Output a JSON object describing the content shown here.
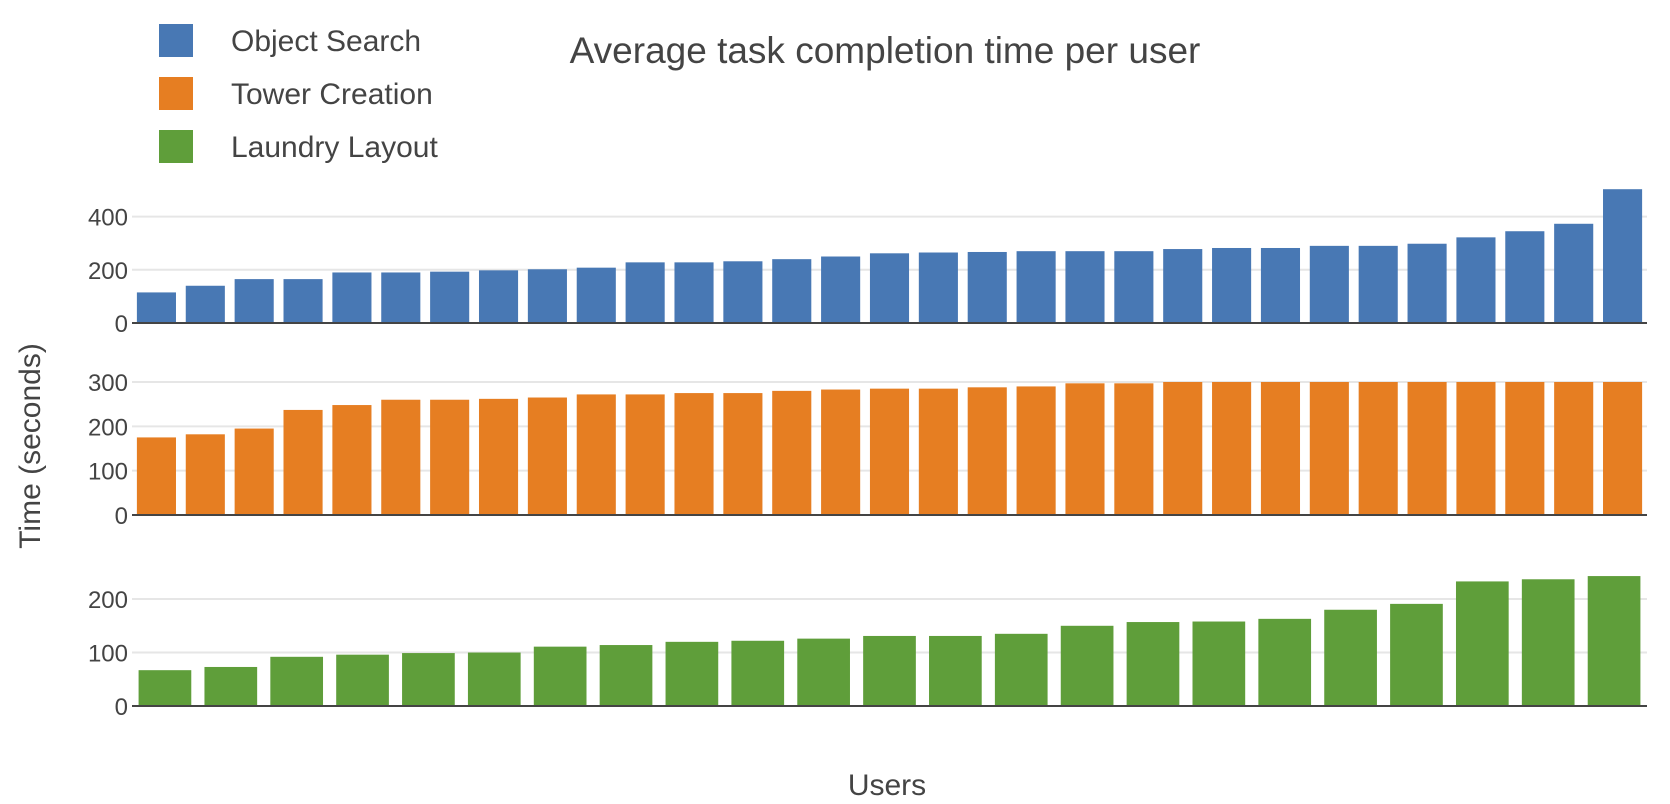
{
  "chart_data": {
    "type": "bar",
    "title": "Average task completion time per user",
    "xlabel": "Users",
    "ylabel": "Time (seconds)",
    "legend_position": "top-left",
    "grid": true,
    "series": [
      {
        "name": "Object Search",
        "color": "#4878b4",
        "yticks": [
          0,
          200,
          400
        ],
        "ylim": [
          0,
          500
        ],
        "values": [
          115,
          140,
          165,
          165,
          190,
          190,
          193,
          198,
          202,
          208,
          228,
          228,
          232,
          240,
          250,
          262,
          265,
          267,
          270,
          270,
          270,
          278,
          282,
          282,
          290,
          290,
          298,
          322,
          345,
          373,
          503
        ]
      },
      {
        "name": "Tower Creation",
        "color": "#e67e22",
        "yticks": [
          0,
          100,
          200,
          300
        ],
        "ylim": [
          0,
          300
        ],
        "values": [
          175,
          182,
          195,
          237,
          248,
          260,
          260,
          262,
          265,
          272,
          272,
          275,
          275,
          280,
          283,
          285,
          285,
          288,
          290,
          297,
          297,
          300,
          300,
          300,
          300,
          300,
          300,
          300,
          300,
          300,
          300
        ]
      },
      {
        "name": "Laundry Layout",
        "color": "#5f9e3a",
        "yticks": [
          0,
          100,
          200
        ],
        "ylim": [
          0,
          245
        ],
        "values": [
          67,
          73,
          92,
          96,
          99,
          100,
          111,
          114,
          120,
          122,
          126,
          131,
          131,
          135,
          150,
          157,
          158,
          163,
          180,
          191,
          233,
          237,
          243
        ]
      }
    ]
  }
}
